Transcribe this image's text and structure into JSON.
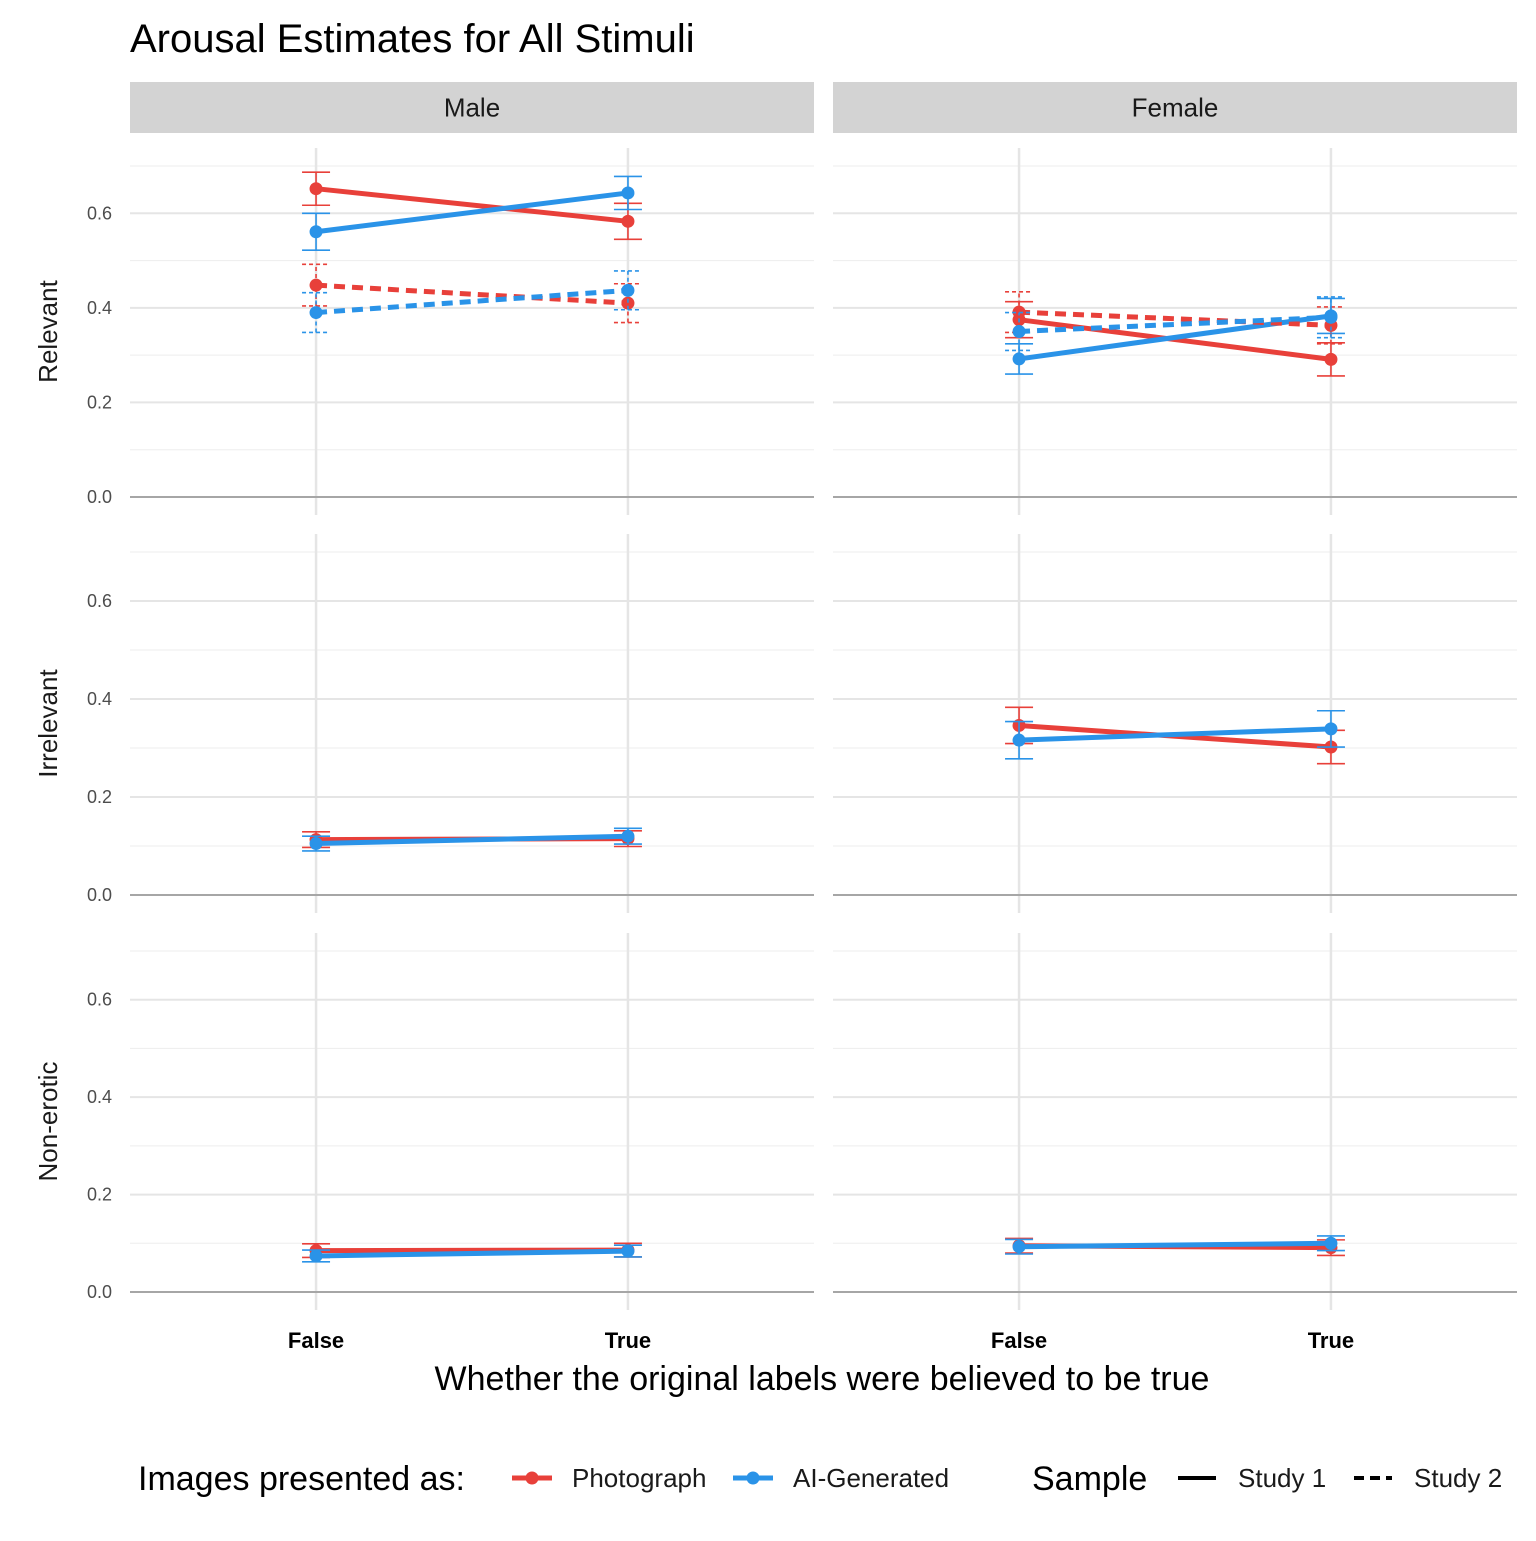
{
  "chart_data": {
    "type": "line",
    "title": "Arousal Estimates for All Stimuli",
    "xlabel": "Whether the original labels were believed to be true",
    "ylabel": "",
    "x_categories": [
      "False",
      "True"
    ],
    "ylim": [
      0,
      0.7
    ],
    "y_ticks": [
      0,
      0.2,
      0.4,
      0.6
    ],
    "y_tick_labels": [
      "0.0",
      "0.2",
      "0.4",
      "0.6"
    ],
    "grid": true,
    "columns": [
      "Male",
      "Female"
    ],
    "rows": [
      "Relevant",
      "Irrelevant",
      "Non-erotic"
    ],
    "legend": {
      "placement": "bottom",
      "color_title": "Images presented as:",
      "colors": [
        {
          "name": "Photograph",
          "color": "#E8403A"
        },
        {
          "name": "AI-Generated",
          "color": "#2A93E8"
        }
      ],
      "linetype_title": "Sample",
      "linetypes": [
        {
          "name": "Study 1",
          "dash": "solid"
        },
        {
          "name": "Study 2",
          "dash": "dashed"
        }
      ]
    },
    "panels": [
      {
        "row": "Relevant",
        "col": "Male",
        "series": [
          {
            "color": "Photograph",
            "sample": "Study 1",
            "values": [
              0.652,
              0.583
            ],
            "lower": [
              0.617,
              0.545
            ],
            "upper": [
              0.687,
              0.621
            ]
          },
          {
            "color": "AI-Generated",
            "sample": "Study 1",
            "values": [
              0.561,
              0.643
            ],
            "lower": [
              0.522,
              0.608
            ],
            "upper": [
              0.6,
              0.678
            ]
          },
          {
            "color": "Photograph",
            "sample": "Study 2",
            "values": [
              0.448,
              0.41
            ],
            "lower": [
              0.404,
              0.369
            ],
            "upper": [
              0.492,
              0.451
            ]
          },
          {
            "color": "AI-Generated",
            "sample": "Study 2",
            "values": [
              0.39,
              0.437
            ],
            "lower": [
              0.348,
              0.396
            ],
            "upper": [
              0.432,
              0.478
            ]
          }
        ]
      },
      {
        "row": "Relevant",
        "col": "Female",
        "series": [
          {
            "color": "Photograph",
            "sample": "Study 1",
            "values": [
              0.375,
              0.291
            ],
            "lower": [
              0.337,
              0.256
            ],
            "upper": [
              0.413,
              0.326
            ]
          },
          {
            "color": "AI-Generated",
            "sample": "Study 1",
            "values": [
              0.292,
              0.383
            ],
            "lower": [
              0.26,
              0.346
            ],
            "upper": [
              0.324,
              0.42
            ]
          },
          {
            "color": "Photograph",
            "sample": "Study 2",
            "values": [
              0.391,
              0.363
            ],
            "lower": [
              0.348,
              0.324
            ],
            "upper": [
              0.434,
              0.402
            ]
          },
          {
            "color": "AI-Generated",
            "sample": "Study 2",
            "values": [
              0.35,
              0.38
            ],
            "lower": [
              0.31,
              0.337
            ],
            "upper": [
              0.39,
              0.423
            ]
          }
        ]
      },
      {
        "row": "Irrelevant",
        "col": "Male",
        "series": [
          {
            "color": "Photograph",
            "sample": "Study 1",
            "values": [
              0.113,
              0.115
            ],
            "lower": [
              0.097,
              0.099
            ],
            "upper": [
              0.129,
              0.131
            ]
          },
          {
            "color": "AI-Generated",
            "sample": "Study 1",
            "values": [
              0.105,
              0.12
            ],
            "lower": [
              0.09,
              0.104
            ],
            "upper": [
              0.12,
              0.136
            ]
          }
        ]
      },
      {
        "row": "Irrelevant",
        "col": "Female",
        "series": [
          {
            "color": "Photograph",
            "sample": "Study 1",
            "values": [
              0.346,
              0.302
            ],
            "lower": [
              0.309,
              0.268
            ],
            "upper": [
              0.383,
              0.336
            ]
          },
          {
            "color": "AI-Generated",
            "sample": "Study 1",
            "values": [
              0.316,
              0.339
            ],
            "lower": [
              0.278,
              0.302
            ],
            "upper": [
              0.354,
              0.376
            ]
          }
        ]
      },
      {
        "row": "Non-erotic",
        "col": "Male",
        "series": [
          {
            "color": "Photograph",
            "sample": "Study 1",
            "values": [
              0.085,
              0.086
            ],
            "lower": [
              0.071,
              0.072
            ],
            "upper": [
              0.099,
              0.1
            ]
          },
          {
            "color": "AI-Generated",
            "sample": "Study 1",
            "values": [
              0.074,
              0.084
            ],
            "lower": [
              0.062,
              0.072
            ],
            "upper": [
              0.086,
              0.096
            ]
          }
        ]
      },
      {
        "row": "Non-erotic",
        "col": "Female",
        "series": [
          {
            "color": "Photograph",
            "sample": "Study 1",
            "values": [
              0.095,
              0.091
            ],
            "lower": [
              0.08,
              0.075
            ],
            "upper": [
              0.11,
              0.107
            ]
          },
          {
            "color": "AI-Generated",
            "sample": "Study 1",
            "values": [
              0.093,
              0.1
            ],
            "lower": [
              0.078,
              0.085
            ],
            "upper": [
              0.108,
              0.115
            ]
          }
        ]
      }
    ]
  }
}
